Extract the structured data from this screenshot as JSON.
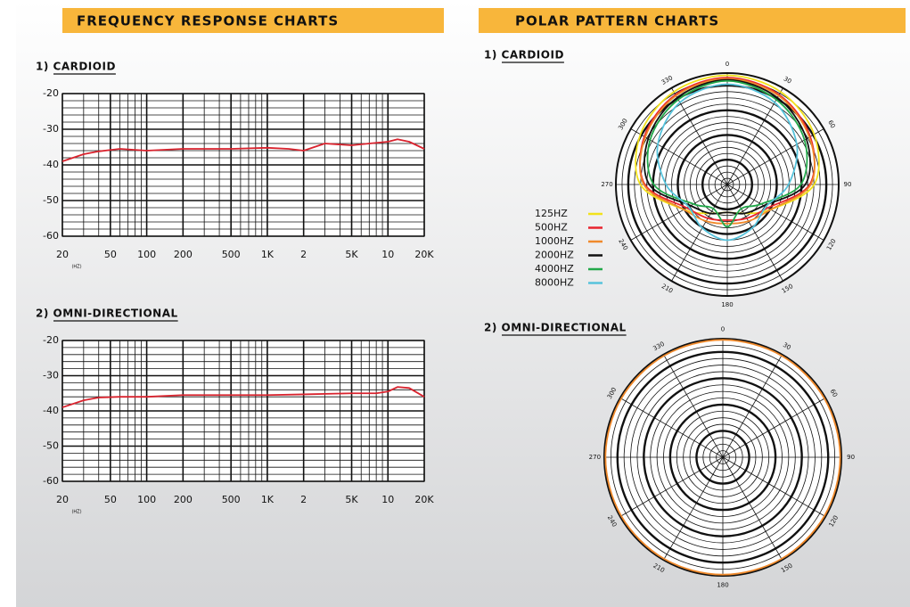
{
  "sections": [
    {
      "title": "FREQUENCY RESPONSE CHARTS"
    },
    {
      "title": "POLAR PATTERN CHARTS"
    }
  ],
  "chart_data": [
    {
      "type": "line",
      "title": "1) CARDIOID",
      "xlabel": "(HZ)",
      "xscale": "log",
      "grid": true,
      "x": [
        20,
        30,
        40,
        60,
        100,
        200,
        500,
        1000,
        1500,
        2000,
        3000,
        5000,
        7000,
        10000,
        12000,
        15000,
        20000
      ],
      "series": [
        {
          "color": "#d9232e",
          "values": [
            -39,
            -37,
            -36.2,
            -35.5,
            -36,
            -35.5,
            -35.5,
            -35.2,
            -35.5,
            -36,
            -34,
            -34.5,
            -34,
            -33.5,
            -32.8,
            -33.5,
            -35.5
          ]
        }
      ],
      "xlim": [
        20,
        20000
      ],
      "xticks": [
        20,
        50,
        100,
        200,
        500,
        {
          "value": 1000,
          "label": "1K"
        },
        {
          "value": 2000,
          "label": "2"
        },
        {
          "value": 5000,
          "label": "5K"
        },
        {
          "value": 10000,
          "label": "10"
        },
        {
          "value": 20000,
          "label": "20K"
        }
      ],
      "minor_xticks": [
        30,
        40,
        60,
        70,
        80,
        90,
        300,
        400,
        600,
        700,
        800,
        900,
        3000,
        4000,
        6000,
        7000,
        8000,
        9000
      ],
      "ylim": [
        -60,
        -20
      ],
      "yticks": [
        -20,
        -30,
        -40,
        -50,
        -60
      ],
      "minor_yticks": [
        -22,
        -24,
        -26,
        -28,
        -32,
        -34,
        -36,
        -38,
        -42,
        -44,
        -46,
        -48,
        -52,
        -54,
        -56,
        -58
      ]
    },
    {
      "type": "line",
      "title": "2) OMNI-DIRECTIONAL",
      "xlabel": "(HZ)",
      "xscale": "log",
      "grid": true,
      "x": [
        20,
        30,
        40,
        60,
        100,
        200,
        500,
        1000,
        2000,
        5000,
        8000,
        10000,
        12000,
        15000,
        20000
      ],
      "series": [
        {
          "color": "#d9232e",
          "values": [
            -39,
            -37,
            -36.2,
            -36,
            -36,
            -35.5,
            -35.5,
            -35.5,
            -35.3,
            -35,
            -35,
            -34.5,
            -33.2,
            -33.5,
            -36
          ]
        }
      ],
      "xlim": [
        20,
        20000
      ],
      "xticks": [
        20,
        50,
        100,
        200,
        500,
        {
          "value": 1000,
          "label": "1K"
        },
        {
          "value": 2000,
          "label": "2"
        },
        {
          "value": 5000,
          "label": "5K"
        },
        {
          "value": 10000,
          "label": "10"
        },
        {
          "value": 20000,
          "label": "20K"
        }
      ],
      "minor_xticks": [
        30,
        40,
        60,
        70,
        80,
        90,
        300,
        400,
        600,
        700,
        800,
        900,
        3000,
        4000,
        6000,
        7000,
        8000,
        9000
      ],
      "ylim": [
        -60,
        -20
      ],
      "yticks": [
        -20,
        -30,
        -40,
        -50,
        -60
      ],
      "minor_yticks": [
        -22,
        -24,
        -26,
        -28,
        -32,
        -34,
        -36,
        -38,
        -42,
        -44,
        -46,
        -48,
        -52,
        -54,
        -56,
        -58
      ]
    },
    {
      "type": "polar",
      "title": "1) CARDIOID",
      "legend": "left",
      "theta": [
        0,
        30,
        60,
        90,
        120,
        150,
        180,
        210,
        240,
        270,
        300,
        330
      ],
      "thetaticks": [
        0,
        30,
        60,
        90,
        120,
        150,
        180,
        210,
        240,
        270,
        300,
        330
      ],
      "series": [
        {
          "name": "125HZ",
          "color": "#f2e21b",
          "values": [
            0.98,
            0.96,
            0.9,
            0.78,
            0.45,
            0.3,
            0.25,
            0.3,
            0.45,
            0.78,
            0.9,
            0.96
          ]
        },
        {
          "name": "500HZ",
          "color": "#e8242e",
          "values": [
            0.96,
            0.93,
            0.86,
            0.74,
            0.42,
            0.35,
            0.32,
            0.35,
            0.42,
            0.74,
            0.86,
            0.93
          ]
        },
        {
          "name": "1000HZ",
          "color": "#f08a2c",
          "values": [
            0.95,
            0.92,
            0.85,
            0.75,
            0.45,
            0.38,
            0.35,
            0.38,
            0.45,
            0.75,
            0.85,
            0.92
          ]
        },
        {
          "name": "2000HZ",
          "color": "#111111",
          "values": [
            0.94,
            0.9,
            0.82,
            0.7,
            0.38,
            0.3,
            0.25,
            0.3,
            0.38,
            0.7,
            0.82,
            0.9
          ]
        },
        {
          "name": "4000HZ",
          "color": "#22a84a",
          "values": [
            0.93,
            0.88,
            0.8,
            0.66,
            0.35,
            0.25,
            0.38,
            0.25,
            0.35,
            0.66,
            0.8,
            0.88
          ]
        },
        {
          "name": "8000HZ",
          "color": "#56c3dc",
          "values": [
            0.9,
            0.85,
            0.72,
            0.55,
            0.4,
            0.45,
            0.5,
            0.45,
            0.4,
            0.55,
            0.72,
            0.85
          ]
        }
      ]
    },
    {
      "type": "polar",
      "title": "2) OMNI-DIRECTIONAL",
      "theta": [
        0,
        30,
        60,
        90,
        120,
        150,
        180,
        210,
        240,
        270,
        300,
        330
      ],
      "thetaticks": [
        0,
        30,
        60,
        90,
        120,
        150,
        180,
        210,
        240,
        270,
        300,
        330
      ],
      "series": [
        {
          "color": "#f08a2c",
          "values": [
            0.99,
            0.99,
            0.99,
            0.99,
            0.99,
            0.99,
            0.99,
            0.99,
            0.99,
            0.99,
            0.99,
            0.99
          ]
        }
      ]
    }
  ]
}
